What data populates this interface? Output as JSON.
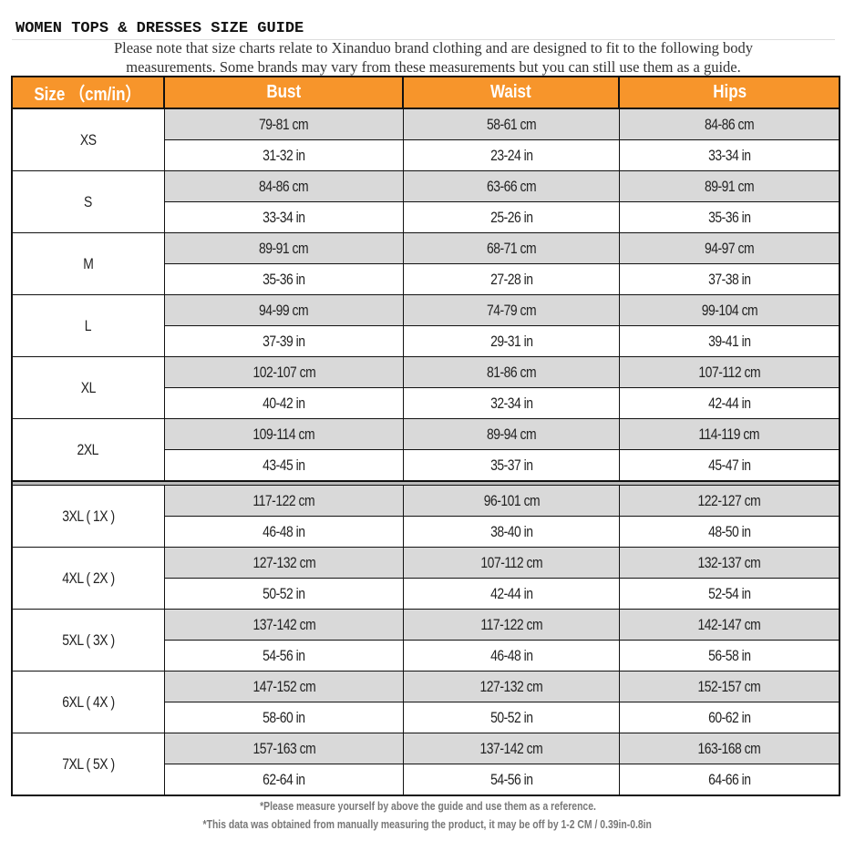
{
  "title": "WOMEN TOPS & DRESSES SIZE GUIDE",
  "note_line1": "Please note that size charts relate to  Xinanduo brand clothing and are designed to fit to the following body",
  "note_line2": "measurements. Some brands may vary from these measurements but you can still use them as a guide.",
  "colors": {
    "header": "#f7952b",
    "stripe": "#d9d9d9"
  },
  "headers": [
    "Size （cm/in）",
    "Bust",
    "Waist",
    "Hips"
  ],
  "rows": [
    {
      "size": "XS",
      "cm": [
        "79-81 cm",
        "58-61 cm",
        "84-86 cm"
      ],
      "in": [
        "31-32 in",
        "23-24 in",
        "33-34 in"
      ]
    },
    {
      "size": "S",
      "cm": [
        "84-86 cm",
        "63-66 cm",
        "89-91 cm"
      ],
      "in": [
        "33-34 in",
        "25-26 in",
        "35-36 in"
      ]
    },
    {
      "size": "M",
      "cm": [
        "89-91 cm",
        "68-71 cm",
        "94-97 cm"
      ],
      "in": [
        "35-36 in",
        "27-28 in",
        "37-38 in"
      ]
    },
    {
      "size": "L",
      "cm": [
        "94-99 cm",
        "74-79 cm",
        "99-104 cm"
      ],
      "in": [
        "37-39 in",
        "29-31 in",
        "39-41 in"
      ]
    },
    {
      "size": "XL",
      "cm": [
        "102-107 cm",
        "81-86 cm",
        "107-112 cm"
      ],
      "in": [
        "40-42 in",
        "32-34 in",
        "42-44 in"
      ]
    },
    {
      "size": "2XL",
      "cm": [
        "109-114 cm",
        "89-94 cm",
        "114-119 cm"
      ],
      "in": [
        "43-45 in",
        "35-37 in",
        "45-47 in"
      ]
    },
    {
      "size": "3XL ( 1X )",
      "cm": [
        "117-122 cm",
        "96-101 cm",
        "122-127 cm"
      ],
      "in": [
        "46-48 in",
        "38-40 in",
        "48-50 in"
      ]
    },
    {
      "size": "4XL ( 2X )",
      "cm": [
        "127-132 cm",
        "107-112 cm",
        "132-137 cm"
      ],
      "in": [
        "50-52 in",
        "42-44 in",
        "52-54 in"
      ]
    },
    {
      "size": "5XL ( 3X )",
      "cm": [
        "137-142 cm",
        "117-122 cm",
        "142-147 cm"
      ],
      "in": [
        "54-56 in",
        "46-48 in",
        "56-58 in"
      ]
    },
    {
      "size": "6XL ( 4X )",
      "cm": [
        "147-152 cm",
        "127-132 cm",
        "152-157 cm"
      ],
      "in": [
        "58-60 in",
        "50-52 in",
        "60-62 in"
      ]
    },
    {
      "size": "7XL ( 5X )",
      "cm": [
        "157-163 cm",
        "137-142 cm",
        "163-168 cm"
      ],
      "in": [
        "62-64 in",
        "54-56 in",
        "64-66 in"
      ]
    }
  ],
  "footnote1": "*Please measure yourself by above the guide and use them as a reference.",
  "footnote2": "*This data was obtained from manually measuring the product, it may be off by 1-2 CM / 0.39in-0.8in"
}
